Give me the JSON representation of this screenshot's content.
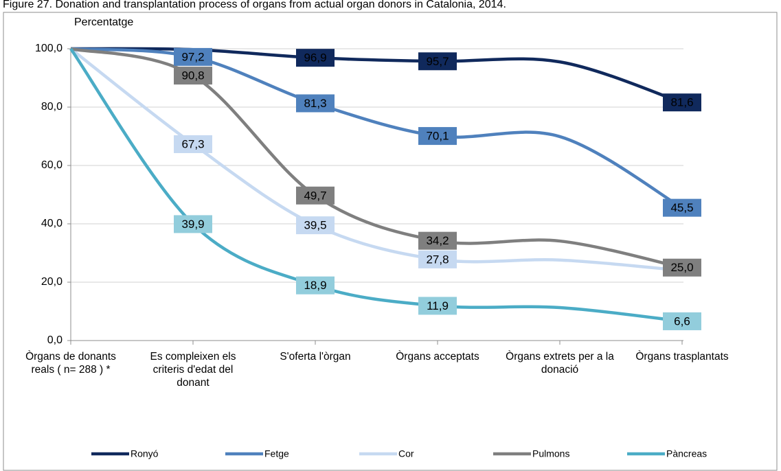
{
  "chart_data": {
    "type": "line",
    "title": "Figure 27. Donation and transplantation process of organs from actual organ donors in Catalonia, 2014.",
    "y_label": "Percentatge",
    "categories": [
      "Òrgans de donants reals ( n= 288 ) *",
      "Es compleixen els criteris d'edat del donant",
      "S'oferta l'òrgan",
      "Òrgans acceptats",
      "Òrgans extrets per a la donació",
      "Òrgans trasplantats"
    ],
    "series": [
      {
        "name": "Ronyó",
        "color": "#10295c",
        "label_fill": "#10295c",
        "label_text": "#ffffff",
        "values": [
          100,
          99.7,
          96.9,
          95.7,
          95.5,
          81.6
        ],
        "value_labels": [
          null,
          null,
          "96,9",
          "95,7",
          null,
          "81,6"
        ]
      },
      {
        "name": "Fetge",
        "color": "#4f81bd",
        "label_fill": "#4f81bd",
        "label_text": "#ffffff",
        "values": [
          100,
          97.2,
          81.3,
          70.1,
          69.9,
          45.5
        ],
        "value_labels": [
          null,
          "97,2",
          "81,3",
          "70,1",
          null,
          "45,5"
        ]
      },
      {
        "name": "Cor",
        "color": "#c6d9f1",
        "label_fill": "#c6d9f1",
        "label_text": "#1a1a1a",
        "values": [
          100,
          67.3,
          39.5,
          27.8,
          27.6,
          24.0
        ],
        "value_labels": [
          null,
          "67,3",
          "39,5",
          "27,8",
          null,
          null
        ]
      },
      {
        "name": "Pulmons",
        "color": "#7f7f7f",
        "label_fill": "#7f7f7f",
        "label_text": "#ffffff",
        "values": [
          100,
          90.8,
          49.7,
          34.2,
          34.1,
          25.0
        ],
        "value_labels": [
          null,
          "90,8",
          "49,7",
          "34,2",
          null,
          "25,0"
        ]
      },
      {
        "name": "Pàncreas",
        "color": "#4bacc6",
        "label_fill": "#92cddc",
        "label_text": "#1a1a1a",
        "values": [
          100,
          39.9,
          18.9,
          11.9,
          11.3,
          6.6
        ],
        "value_labels": [
          null,
          "39,9",
          "18,9",
          "11,9",
          null,
          "6,6"
        ]
      }
    ],
    "ylim": [
      0,
      100
    ],
    "yticks": [
      {
        "value": 0,
        "label": "0,0"
      },
      {
        "value": 20,
        "label": "20,0"
      },
      {
        "value": 40,
        "label": "40,0"
      },
      {
        "value": 60,
        "label": "60,0"
      },
      {
        "value": 80,
        "label": "80,0"
      },
      {
        "value": 100,
        "label": "100,0"
      }
    ],
    "grid": true,
    "smooth": true,
    "legend": "bottom"
  }
}
